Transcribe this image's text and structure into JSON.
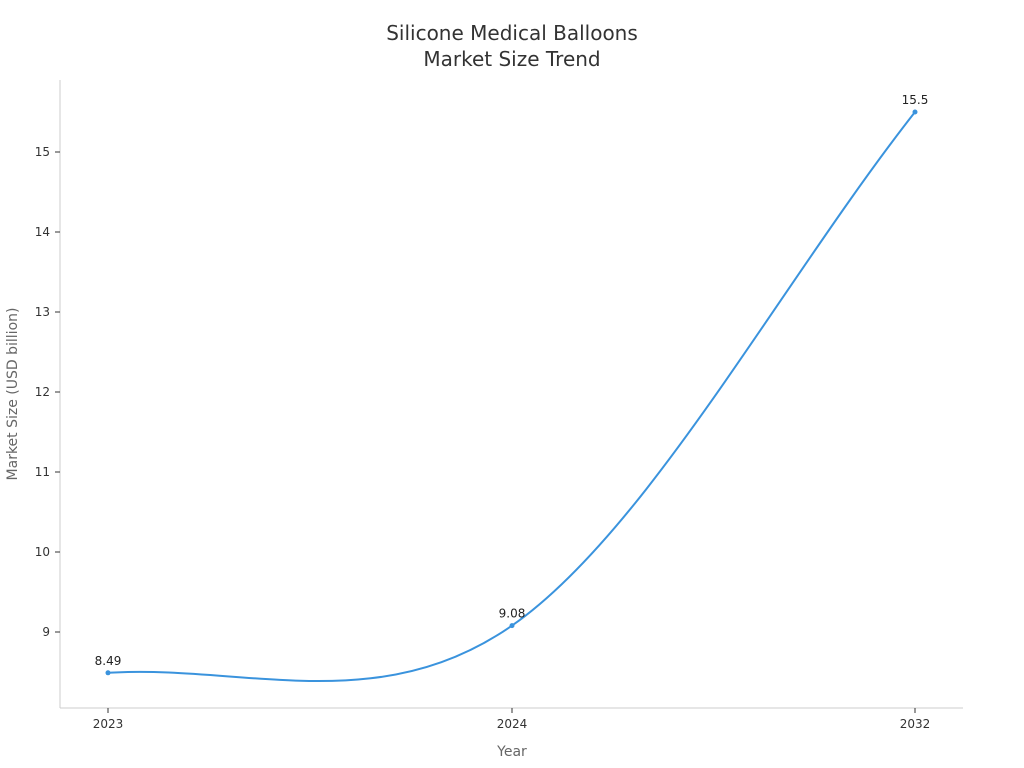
{
  "chart_data": {
    "type": "line",
    "title_lines": [
      "Silicone Medical Balloons",
      "Market Size Trend"
    ],
    "xlabel": "Year",
    "ylabel": "Market Size (USD billion)",
    "categories": [
      "2023",
      "2024",
      "2032"
    ],
    "series": [
      {
        "values": [
          8.49,
          9.08,
          15.5
        ],
        "labels": [
          "8.49",
          "9.08",
          "15.5"
        ]
      }
    ],
    "yticks": [
      "9",
      "10",
      "11",
      "12",
      "13",
      "14",
      "15"
    ],
    "ylim": [
      8.05,
      15.9
    ],
    "grid": false,
    "legend": "none",
    "line_color": "#3a93dd"
  }
}
